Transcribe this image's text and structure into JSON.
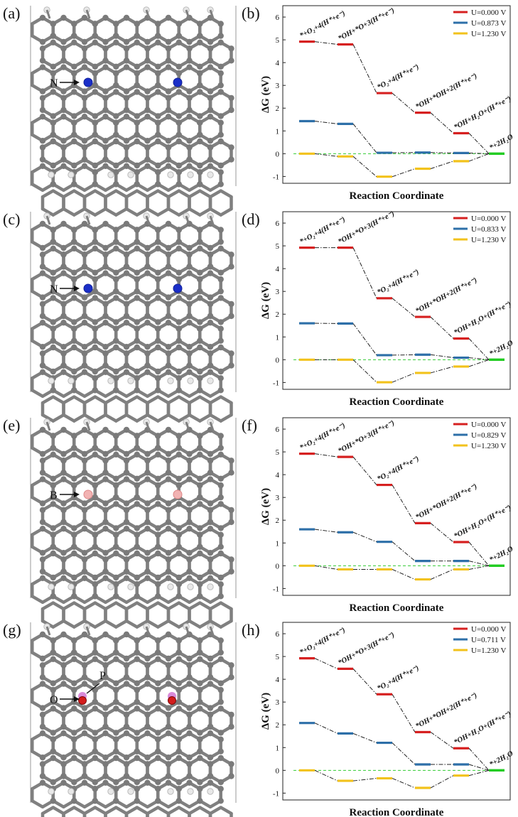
{
  "colors": {
    "U0": "#d62020",
    "U1": "#2d6fa8",
    "U2": "#f2c21b",
    "final": "#22cc22",
    "bond": "#808080",
    "hydrogen": "#e8e8e8",
    "N": "#1a2ec8",
    "B": "#f2b3b3",
    "P": "#d98ad9",
    "O": "#d41c1c"
  },
  "structures": [
    {
      "label": "(a)",
      "dopant": "N",
      "dopant_label": "N",
      "extra_label": ""
    },
    {
      "label": "(c)",
      "dopant": "N",
      "dopant_label": "N",
      "extra_label": ""
    },
    {
      "label": "(e)",
      "dopant": "B",
      "dopant_label": "B",
      "extra_label": ""
    },
    {
      "label": "(g)",
      "dopant": "P",
      "dopant_label": "O",
      "extra_label": "P"
    }
  ],
  "chart_data": [
    {
      "type": "line",
      "panel_label": "(b)",
      "xlabel": "Reaction Coordinate",
      "ylabel": "ΔG (eV)",
      "ylim": [
        -1.3,
        6.5
      ],
      "yticks": [
        -1,
        0,
        1,
        2,
        3,
        4,
        5,
        6
      ],
      "legend_position": "top-right",
      "step_labels": [
        "*+O₂+4(H⁺+e⁻)",
        "*OH+*O+3(H⁺+e⁻)",
        "*O₂+4(H⁺+e⁻)",
        "*OH+*OH+2(H⁺+e⁻)",
        "*OH+H₂O+(H⁺+e⁻)",
        "*+2H₂O"
      ],
      "series": [
        {
          "name": "U=0.000 V",
          "values": [
            4.92,
            4.8,
            2.66,
            1.8,
            0.9,
            0.0
          ]
        },
        {
          "name": "U=0.873 V",
          "values": [
            1.43,
            1.31,
            0.04,
            0.05,
            0.03,
            0.0
          ]
        },
        {
          "name": "U=1.230 V",
          "values": [
            0.0,
            -0.12,
            -1.01,
            -0.66,
            -0.33,
            0.0
          ]
        }
      ]
    },
    {
      "type": "line",
      "panel_label": "(d)",
      "xlabel": "Reaction Coordinate",
      "ylabel": "ΔG (eV)",
      "ylim": [
        -1.3,
        6.5
      ],
      "yticks": [
        -1,
        0,
        1,
        2,
        3,
        4,
        5,
        6
      ],
      "legend_position": "top-right",
      "step_labels": [
        "*+O₂+4(H⁺+e⁻)",
        "*OH+*O+3(H⁺+e⁻)",
        "*O₂+4(H⁺+e⁻)",
        "*OH+*OH+2(H⁺+e⁻)",
        "*OH+H₂O+(H⁺+e⁻)",
        "*+2H₂O"
      ],
      "series": [
        {
          "name": "U=0.000 V",
          "values": [
            4.92,
            4.92,
            2.7,
            1.88,
            0.93,
            0.0
          ]
        },
        {
          "name": "U=0.833 V",
          "values": [
            1.6,
            1.59,
            0.2,
            0.22,
            0.09,
            0.0
          ]
        },
        {
          "name": "U=1.230 V",
          "values": [
            0.0,
            0.0,
            -0.99,
            -0.58,
            -0.3,
            0.0
          ]
        }
      ]
    },
    {
      "type": "line",
      "panel_label": "(f)",
      "xlabel": "Reaction Coordinate",
      "ylabel": "ΔG (eV)",
      "ylim": [
        -1.3,
        6.5
      ],
      "yticks": [
        -1,
        0,
        1,
        2,
        3,
        4,
        5,
        6
      ],
      "legend_position": "top-right",
      "step_labels": [
        "*+O₂+4(H⁺+e⁻)",
        "*OH+*O+3(H⁺+e⁻)",
        "*O₂+4(H⁺+e⁻)",
        "*OH+*OH+2(H⁺+e⁻)",
        "*OH+H₂O+(H⁺+e⁻)",
        "*+2H₂O"
      ],
      "series": [
        {
          "name": "U=0.000 V",
          "values": [
            4.92,
            4.78,
            3.55,
            1.87,
            1.04,
            0.0
          ]
        },
        {
          "name": "U=0.829 V",
          "values": [
            1.6,
            1.47,
            1.05,
            0.21,
            0.21,
            0.0
          ]
        },
        {
          "name": "U=1.230 V",
          "values": [
            0.0,
            -0.16,
            -0.16,
            -0.6,
            -0.16,
            0.0
          ]
        }
      ]
    },
    {
      "type": "line",
      "panel_label": "(h)",
      "xlabel": "Reaction Coordinate",
      "ylabel": "ΔG (eV)",
      "ylim": [
        -1.3,
        6.5
      ],
      "yticks": [
        -1,
        0,
        1,
        2,
        3,
        4,
        5,
        6
      ],
      "legend_position": "top-right",
      "step_labels": [
        "*+O₂+4(H⁺+e⁻)",
        "*OH+*O+3(H⁺+e⁻)",
        "*O₂+4(H⁺+e⁻)",
        "*OH+*OH+2(H⁺+e⁻)",
        "*OH+H₂O+(H⁺+e⁻)",
        "*+2H₂O"
      ],
      "series": [
        {
          "name": "U=0.000 V",
          "values": [
            4.92,
            4.46,
            3.34,
            1.68,
            0.97,
            0.0
          ]
        },
        {
          "name": "U=0.711 V",
          "values": [
            2.08,
            1.62,
            1.21,
            0.26,
            0.26,
            0.0
          ]
        },
        {
          "name": "U=1.230 V",
          "values": [
            0.0,
            -0.46,
            -0.35,
            -0.77,
            -0.23,
            0.0
          ]
        }
      ]
    }
  ]
}
